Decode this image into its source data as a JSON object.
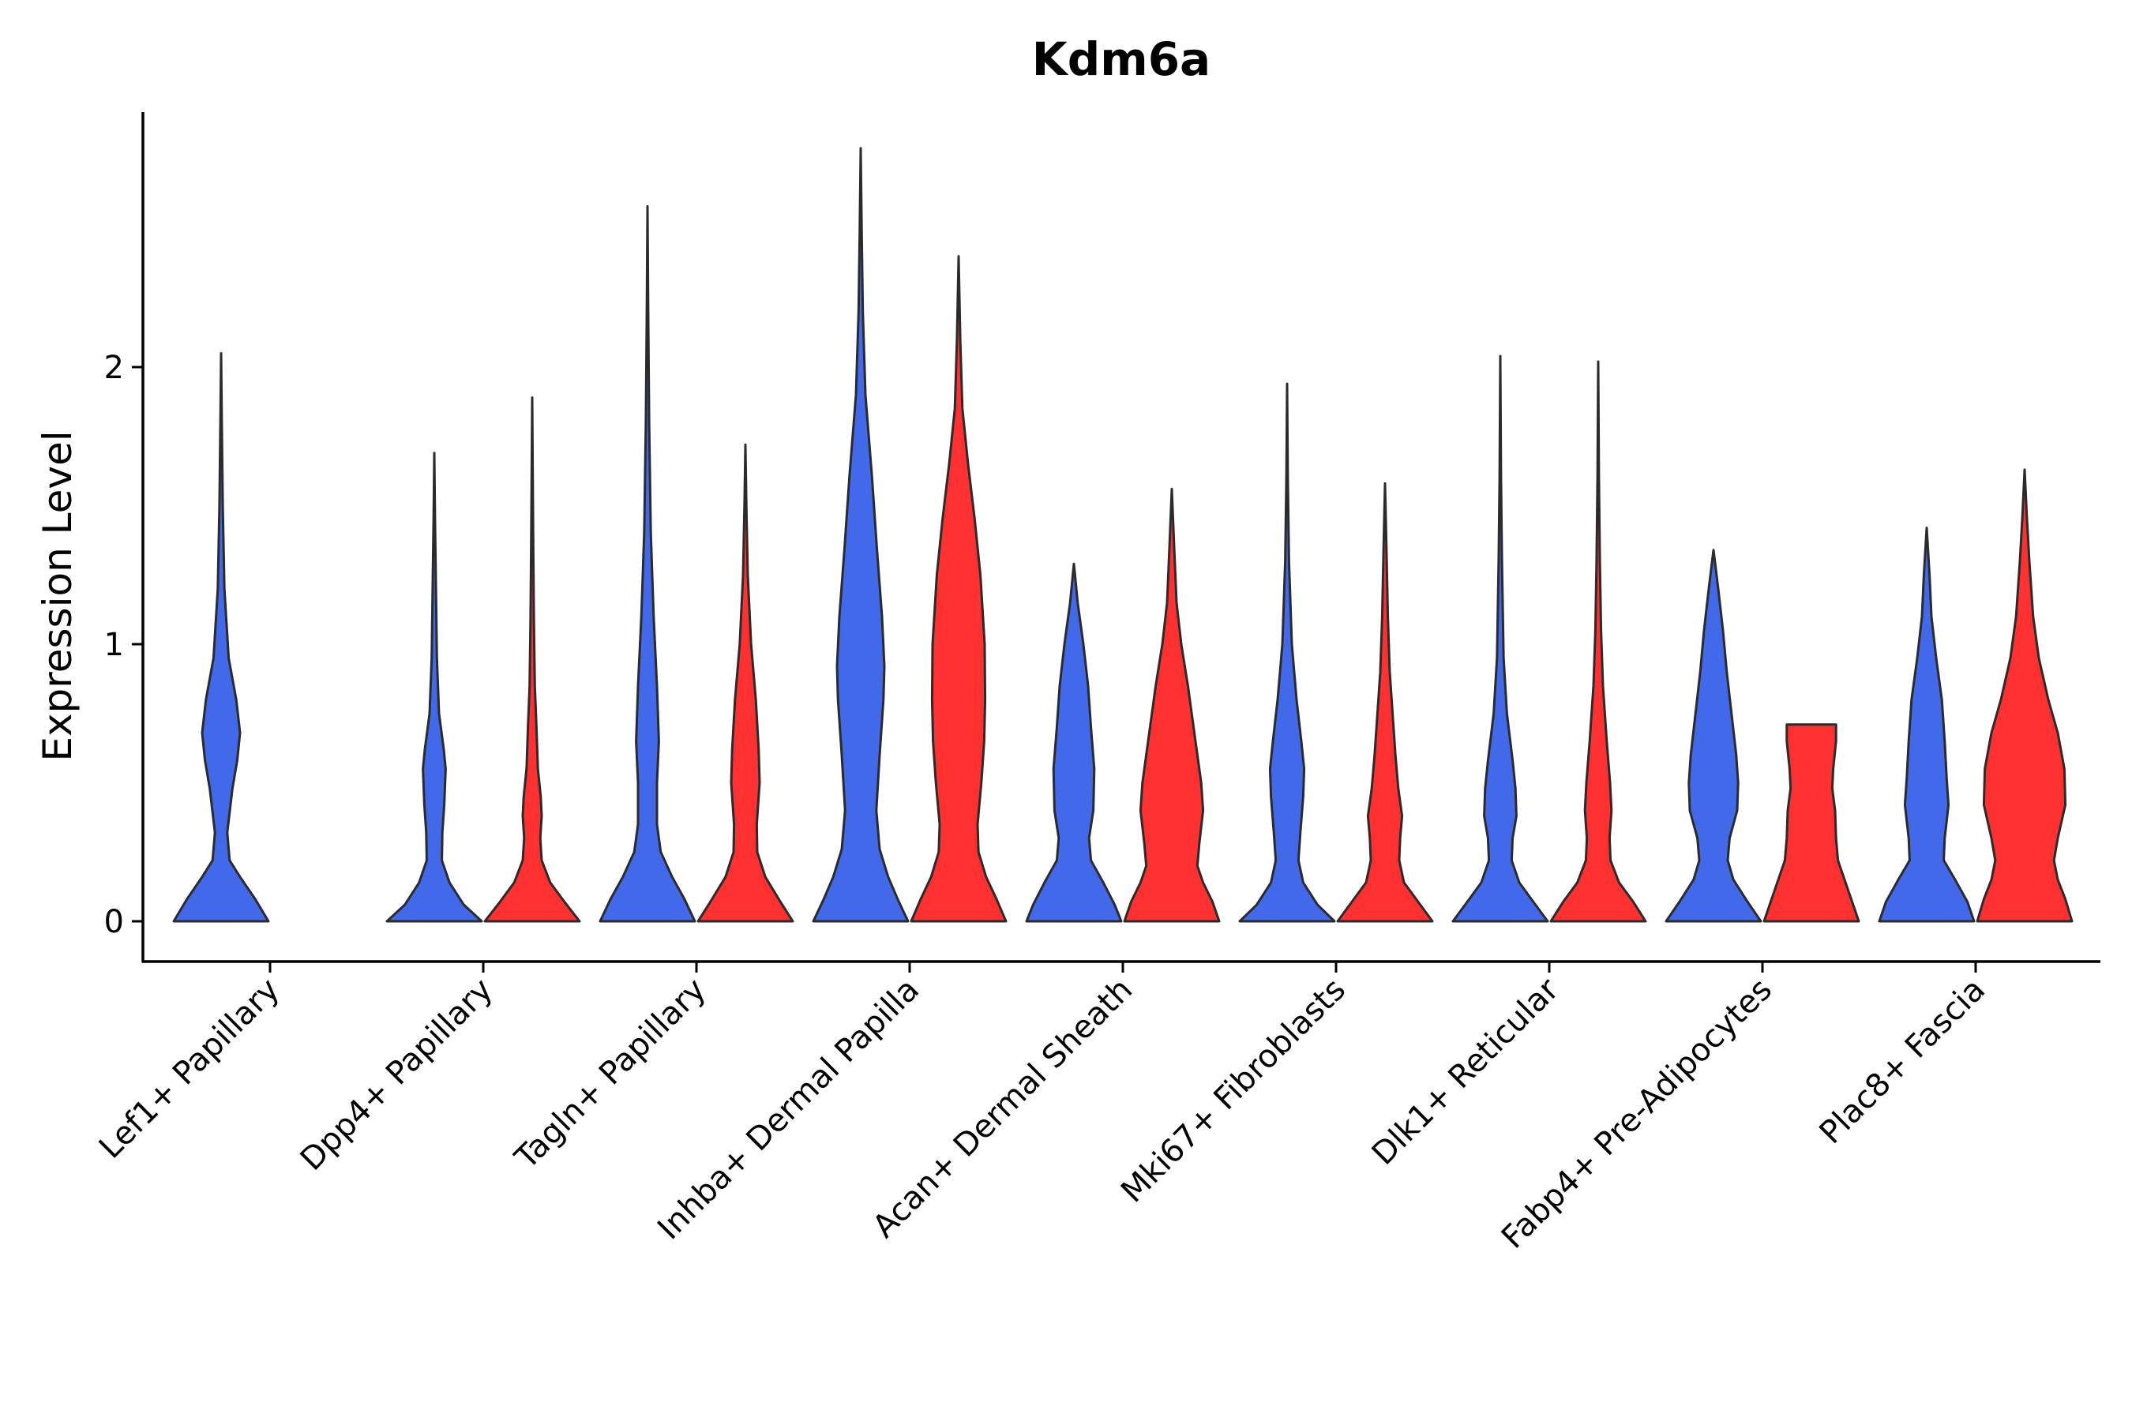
{
  "chart_data": {
    "type": "violin",
    "title": "Kdm6a",
    "xlabel": "",
    "ylabel": "Expression Level",
    "ylim": [
      -0.14,
      2.9
    ],
    "yticks": [
      0,
      1,
      2
    ],
    "ytick_labels": [
      "0",
      "1",
      "2"
    ],
    "series_colors": {
      "blue": "#4169E9",
      "red": "#FF3030"
    },
    "categories": [
      "Lef1+ Papillary",
      "Dpp4+ Papillary",
      "Tagln+ Papillary",
      "Inhba+ Dermal Papilla",
      "Acan+ Dermal Sheath",
      "Mki67+ Fibroblasts",
      "Dlk1+ Reticular",
      "Fabp4+ Pre-Adipocytes",
      "Plac8+ Fascia"
    ],
    "violins": [
      {
        "category": 0,
        "series": "blue",
        "max": 2.05,
        "profile": [
          [
            0,
            1.0
          ],
          [
            0.08,
            0.72
          ],
          [
            0.16,
            0.4
          ],
          [
            0.22,
            0.18
          ],
          [
            0.32,
            0.13
          ],
          [
            0.48,
            0.24
          ],
          [
            0.58,
            0.34
          ],
          [
            0.68,
            0.4
          ],
          [
            0.8,
            0.32
          ],
          [
            0.95,
            0.16
          ],
          [
            1.2,
            0.07
          ],
          [
            1.5,
            0.035
          ],
          [
            1.8,
            0.015
          ],
          [
            2.05,
            0.0
          ]
        ]
      },
      {
        "category": 1,
        "series": "blue",
        "max": 1.69,
        "profile": [
          [
            0,
            1.0
          ],
          [
            0.06,
            0.62
          ],
          [
            0.14,
            0.32
          ],
          [
            0.22,
            0.16
          ],
          [
            0.32,
            0.17
          ],
          [
            0.42,
            0.21
          ],
          [
            0.55,
            0.24
          ],
          [
            0.62,
            0.2
          ],
          [
            0.75,
            0.1
          ],
          [
            0.95,
            0.055
          ],
          [
            1.2,
            0.035
          ],
          [
            1.45,
            0.015
          ],
          [
            1.69,
            0.0
          ]
        ]
      },
      {
        "category": 1,
        "series": "red",
        "max": 1.89,
        "profile": [
          [
            0,
            1.0
          ],
          [
            0.07,
            0.68
          ],
          [
            0.14,
            0.38
          ],
          [
            0.22,
            0.2
          ],
          [
            0.3,
            0.17
          ],
          [
            0.38,
            0.2
          ],
          [
            0.45,
            0.18
          ],
          [
            0.55,
            0.12
          ],
          [
            0.7,
            0.09
          ],
          [
            0.85,
            0.055
          ],
          [
            1.1,
            0.035
          ],
          [
            1.4,
            0.02
          ],
          [
            1.89,
            0.0
          ]
        ]
      },
      {
        "category": 2,
        "series": "blue",
        "max": 2.58,
        "profile": [
          [
            0,
            1.0
          ],
          [
            0.08,
            0.78
          ],
          [
            0.16,
            0.52
          ],
          [
            0.25,
            0.28
          ],
          [
            0.35,
            0.2
          ],
          [
            0.5,
            0.2
          ],
          [
            0.65,
            0.24
          ],
          [
            0.85,
            0.2
          ],
          [
            1.1,
            0.13
          ],
          [
            1.4,
            0.07
          ],
          [
            1.8,
            0.035
          ],
          [
            2.2,
            0.015
          ],
          [
            2.58,
            0.0
          ]
        ]
      },
      {
        "category": 2,
        "series": "red",
        "max": 1.72,
        "profile": [
          [
            0,
            1.0
          ],
          [
            0.07,
            0.74
          ],
          [
            0.16,
            0.42
          ],
          [
            0.25,
            0.25
          ],
          [
            0.35,
            0.24
          ],
          [
            0.5,
            0.3
          ],
          [
            0.62,
            0.28
          ],
          [
            0.8,
            0.22
          ],
          [
            1.0,
            0.12
          ],
          [
            1.25,
            0.05
          ],
          [
            1.5,
            0.02
          ],
          [
            1.72,
            0.0
          ]
        ]
      },
      {
        "category": 3,
        "series": "blue",
        "max": 2.79,
        "profile": [
          [
            0,
            1.0
          ],
          [
            0.08,
            0.78
          ],
          [
            0.16,
            0.58
          ],
          [
            0.26,
            0.4
          ],
          [
            0.4,
            0.33
          ],
          [
            0.6,
            0.4
          ],
          [
            0.8,
            0.48
          ],
          [
            0.92,
            0.5
          ],
          [
            1.1,
            0.45
          ],
          [
            1.35,
            0.34
          ],
          [
            1.6,
            0.24
          ],
          [
            1.9,
            0.1
          ],
          [
            2.2,
            0.045
          ],
          [
            2.5,
            0.02
          ],
          [
            2.79,
            0.0
          ]
        ]
      },
      {
        "category": 3,
        "series": "red",
        "max": 2.4,
        "profile": [
          [
            0,
            1.0
          ],
          [
            0.08,
            0.8
          ],
          [
            0.16,
            0.58
          ],
          [
            0.25,
            0.42
          ],
          [
            0.35,
            0.4
          ],
          [
            0.5,
            0.48
          ],
          [
            0.65,
            0.54
          ],
          [
            0.8,
            0.56
          ],
          [
            1.0,
            0.55
          ],
          [
            1.25,
            0.46
          ],
          [
            1.45,
            0.34
          ],
          [
            1.65,
            0.2
          ],
          [
            1.85,
            0.08
          ],
          [
            2.1,
            0.035
          ],
          [
            2.4,
            0.0
          ]
        ]
      },
      {
        "category": 4,
        "series": "blue",
        "max": 1.29,
        "profile": [
          [
            0,
            1.0
          ],
          [
            0.06,
            0.86
          ],
          [
            0.14,
            0.62
          ],
          [
            0.22,
            0.36
          ],
          [
            0.3,
            0.32
          ],
          [
            0.4,
            0.41
          ],
          [
            0.55,
            0.43
          ],
          [
            0.7,
            0.36
          ],
          [
            0.85,
            0.3
          ],
          [
            1.0,
            0.2
          ],
          [
            1.15,
            0.08
          ],
          [
            1.29,
            0.0
          ]
        ]
      },
      {
        "category": 4,
        "series": "red",
        "max": 1.56,
        "profile": [
          [
            0,
            1.0
          ],
          [
            0.07,
            0.86
          ],
          [
            0.14,
            0.66
          ],
          [
            0.2,
            0.54
          ],
          [
            0.28,
            0.58
          ],
          [
            0.4,
            0.66
          ],
          [
            0.5,
            0.62
          ],
          [
            0.65,
            0.5
          ],
          [
            0.85,
            0.34
          ],
          [
            1.0,
            0.2
          ],
          [
            1.15,
            0.1
          ],
          [
            1.35,
            0.05
          ],
          [
            1.56,
            0.0
          ]
        ]
      },
      {
        "category": 5,
        "series": "blue",
        "max": 1.94,
        "profile": [
          [
            0,
            1.0
          ],
          [
            0.06,
            0.64
          ],
          [
            0.14,
            0.34
          ],
          [
            0.22,
            0.24
          ],
          [
            0.32,
            0.28
          ],
          [
            0.45,
            0.34
          ],
          [
            0.55,
            0.36
          ],
          [
            0.65,
            0.3
          ],
          [
            0.8,
            0.2
          ],
          [
            1.0,
            0.1
          ],
          [
            1.3,
            0.04
          ],
          [
            1.6,
            0.015
          ],
          [
            1.94,
            0.0
          ]
        ]
      },
      {
        "category": 5,
        "series": "red",
        "max": 1.58,
        "profile": [
          [
            0,
            1.0
          ],
          [
            0.07,
            0.7
          ],
          [
            0.14,
            0.4
          ],
          [
            0.22,
            0.3
          ],
          [
            0.3,
            0.32
          ],
          [
            0.38,
            0.36
          ],
          [
            0.48,
            0.28
          ],
          [
            0.6,
            0.22
          ],
          [
            0.75,
            0.16
          ],
          [
            0.9,
            0.1
          ],
          [
            1.1,
            0.06
          ],
          [
            1.35,
            0.03
          ],
          [
            1.58,
            0.0
          ]
        ]
      },
      {
        "category": 6,
        "series": "blue",
        "max": 2.04,
        "profile": [
          [
            0,
            1.0
          ],
          [
            0.06,
            0.74
          ],
          [
            0.14,
            0.4
          ],
          [
            0.22,
            0.24
          ],
          [
            0.3,
            0.26
          ],
          [
            0.38,
            0.34
          ],
          [
            0.48,
            0.32
          ],
          [
            0.58,
            0.26
          ],
          [
            0.75,
            0.14
          ],
          [
            0.95,
            0.07
          ],
          [
            1.3,
            0.035
          ],
          [
            1.6,
            0.015
          ],
          [
            2.04,
            0.0
          ]
        ]
      },
      {
        "category": 6,
        "series": "red",
        "max": 2.02,
        "profile": [
          [
            0,
            1.0
          ],
          [
            0.07,
            0.74
          ],
          [
            0.14,
            0.44
          ],
          [
            0.22,
            0.26
          ],
          [
            0.3,
            0.24
          ],
          [
            0.4,
            0.28
          ],
          [
            0.5,
            0.25
          ],
          [
            0.65,
            0.18
          ],
          [
            0.85,
            0.1
          ],
          [
            1.05,
            0.06
          ],
          [
            1.3,
            0.035
          ],
          [
            1.6,
            0.015
          ],
          [
            2.02,
            0.0
          ]
        ]
      },
      {
        "category": 7,
        "series": "blue",
        "max": 1.34,
        "profile": [
          [
            0,
            1.0
          ],
          [
            0.07,
            0.72
          ],
          [
            0.15,
            0.42
          ],
          [
            0.22,
            0.3
          ],
          [
            0.3,
            0.34
          ],
          [
            0.4,
            0.5
          ],
          [
            0.5,
            0.52
          ],
          [
            0.6,
            0.48
          ],
          [
            0.75,
            0.38
          ],
          [
            0.9,
            0.28
          ],
          [
            1.05,
            0.2
          ],
          [
            1.2,
            0.1
          ],
          [
            1.34,
            0.0
          ]
        ]
      },
      {
        "category": 7,
        "series": "red",
        "max": 0.71,
        "profile": [
          [
            0,
            1.0
          ],
          [
            0.06,
            0.88
          ],
          [
            0.14,
            0.72
          ],
          [
            0.22,
            0.56
          ],
          [
            0.3,
            0.52
          ],
          [
            0.4,
            0.5
          ],
          [
            0.48,
            0.44
          ],
          [
            0.55,
            0.46
          ],
          [
            0.65,
            0.52
          ],
          [
            0.71,
            0.52
          ]
        ]
      },
      {
        "category": 8,
        "series": "blue",
        "max": 1.42,
        "profile": [
          [
            0,
            1.0
          ],
          [
            0.07,
            0.86
          ],
          [
            0.15,
            0.6
          ],
          [
            0.22,
            0.36
          ],
          [
            0.3,
            0.38
          ],
          [
            0.42,
            0.46
          ],
          [
            0.52,
            0.42
          ],
          [
            0.65,
            0.38
          ],
          [
            0.8,
            0.32
          ],
          [
            0.95,
            0.2
          ],
          [
            1.1,
            0.1
          ],
          [
            1.25,
            0.06
          ],
          [
            1.42,
            0.0
          ]
        ]
      },
      {
        "category": 8,
        "series": "red",
        "max": 1.63,
        "profile": [
          [
            0,
            1.0
          ],
          [
            0.08,
            0.86
          ],
          [
            0.15,
            0.7
          ],
          [
            0.22,
            0.62
          ],
          [
            0.3,
            0.7
          ],
          [
            0.42,
            0.86
          ],
          [
            0.55,
            0.84
          ],
          [
            0.68,
            0.7
          ],
          [
            0.8,
            0.5
          ],
          [
            0.95,
            0.3
          ],
          [
            1.1,
            0.18
          ],
          [
            1.3,
            0.1
          ],
          [
            1.45,
            0.05
          ],
          [
            1.63,
            0.0
          ]
        ]
      }
    ]
  }
}
